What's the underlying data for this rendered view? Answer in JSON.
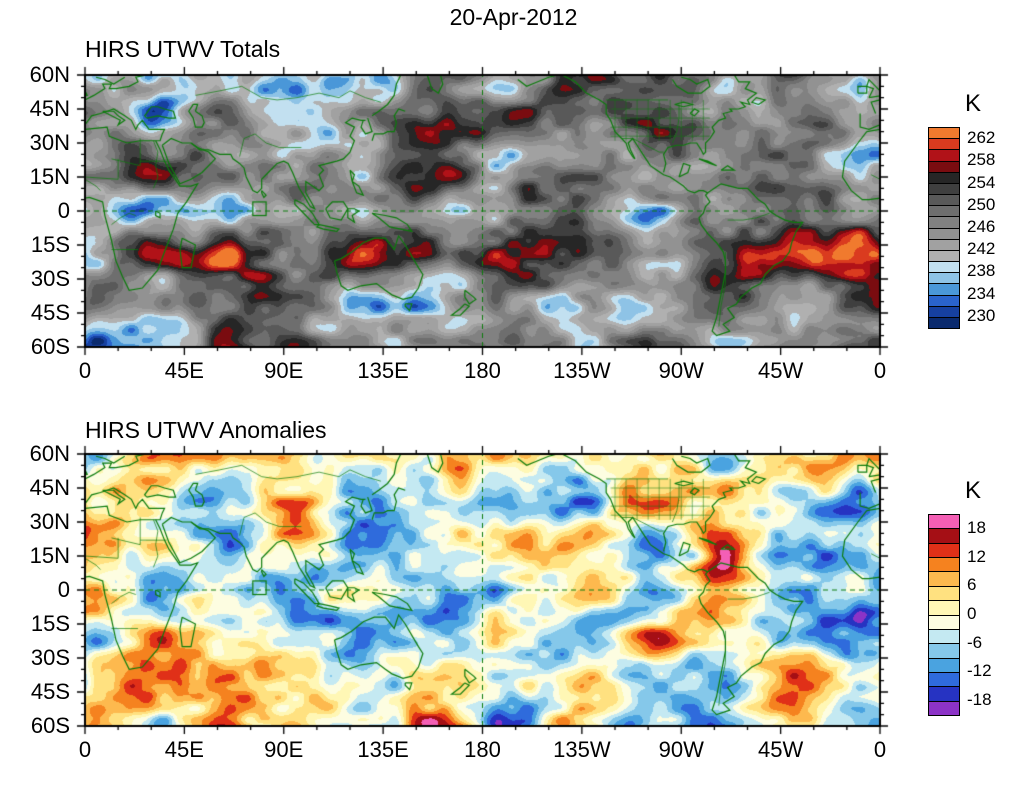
{
  "page_title": "20-Apr-2012",
  "chart_data": [
    {
      "type": "heatmap",
      "title": "HIRS UTWV Totals",
      "date": "20-Apr-2012",
      "units": "K",
      "projection": "global cylindrical, longitudes 0E eastward to 0E, latitudes 60N to 60S",
      "x_ticks": [
        "0",
        "45E",
        "90E",
        "135E",
        "180",
        "135W",
        "90W",
        "45W",
        "0"
      ],
      "y_ticks": [
        "60N",
        "45N",
        "30N",
        "15N",
        "0",
        "15S",
        "30S",
        "45S",
        "60S"
      ],
      "xlim_deg": [
        0,
        360
      ],
      "ylim_deg": [
        -60,
        60
      ],
      "colorbar": {
        "title": "K",
        "tick_labels": [
          "262",
          "258",
          "254",
          "250",
          "246",
          "242",
          "238",
          "234",
          "230"
        ],
        "edge_values": [
          228,
          264
        ],
        "contour_interval": 2,
        "colors_bottom_to_top": [
          "#0a2a6e",
          "#1640a0",
          "#2a63cc",
          "#4a97d8",
          "#8ec3e6",
          "#c2e0f0",
          "#b0b0b0",
          "#a1a1a1",
          "#929292",
          "#818181",
          "#6e6e6e",
          "#595959",
          "#3f3f3f",
          "#262626",
          "#7a0c10",
          "#b11218",
          "#da3b1f",
          "#f07a2e"
        ]
      },
      "overlays": {
        "coastline_color": "#0c7c0c",
        "dashed_lines": [
          "equator",
          "180 meridian"
        ],
        "marker_square_lonlat": [
          76,
          -2,
          82,
          4
        ]
      },
      "field_description": "Filled contours of upper tropospheric water vapor brightness temperature; grays midrange, blues cold/moist, reds warm/dry ridges in subtropics"
    },
    {
      "type": "heatmap",
      "title": "HIRS UTWV Anomalies",
      "date": "20-Apr-2012",
      "units": "K",
      "projection": "global cylindrical, longitudes 0E eastward to 0E, latitudes 60N to 60S",
      "x_ticks": [
        "0",
        "45E",
        "90E",
        "135E",
        "180",
        "135W",
        "90W",
        "45W",
        "0"
      ],
      "y_ticks": [
        "60N",
        "45N",
        "30N",
        "15N",
        "0",
        "15S",
        "30S",
        "45S",
        "60S"
      ],
      "xlim_deg": [
        0,
        360
      ],
      "ylim_deg": [
        -60,
        60
      ],
      "colorbar": {
        "title": "K",
        "tick_labels": [
          "18",
          "12",
          "6",
          "0",
          "-6",
          "-12",
          "-18"
        ],
        "edge_values": [
          -21,
          21
        ],
        "contour_interval": 3,
        "colors_bottom_to_top": [
          "#8c33c7",
          "#2633c2",
          "#2f6bdc",
          "#4aa3e0",
          "#85c8ea",
          "#c4e9f2",
          "#fdfde1",
          "#fff7b5",
          "#ffe180",
          "#fdb94e",
          "#f5821f",
          "#e03018",
          "#a50f15",
          "#f45fb5"
        ]
      },
      "overlays": {
        "coastline_color": "#0c7c0c",
        "dashed_lines": [
          "equator",
          "180 meridian"
        ],
        "marker_square_lonlat": [
          76,
          -2,
          82,
          4
        ]
      },
      "field_description": "Filled contours of upper tropospheric water vapor anomalies; warm colors positive, cool colors negative, pale near zero"
    }
  ]
}
